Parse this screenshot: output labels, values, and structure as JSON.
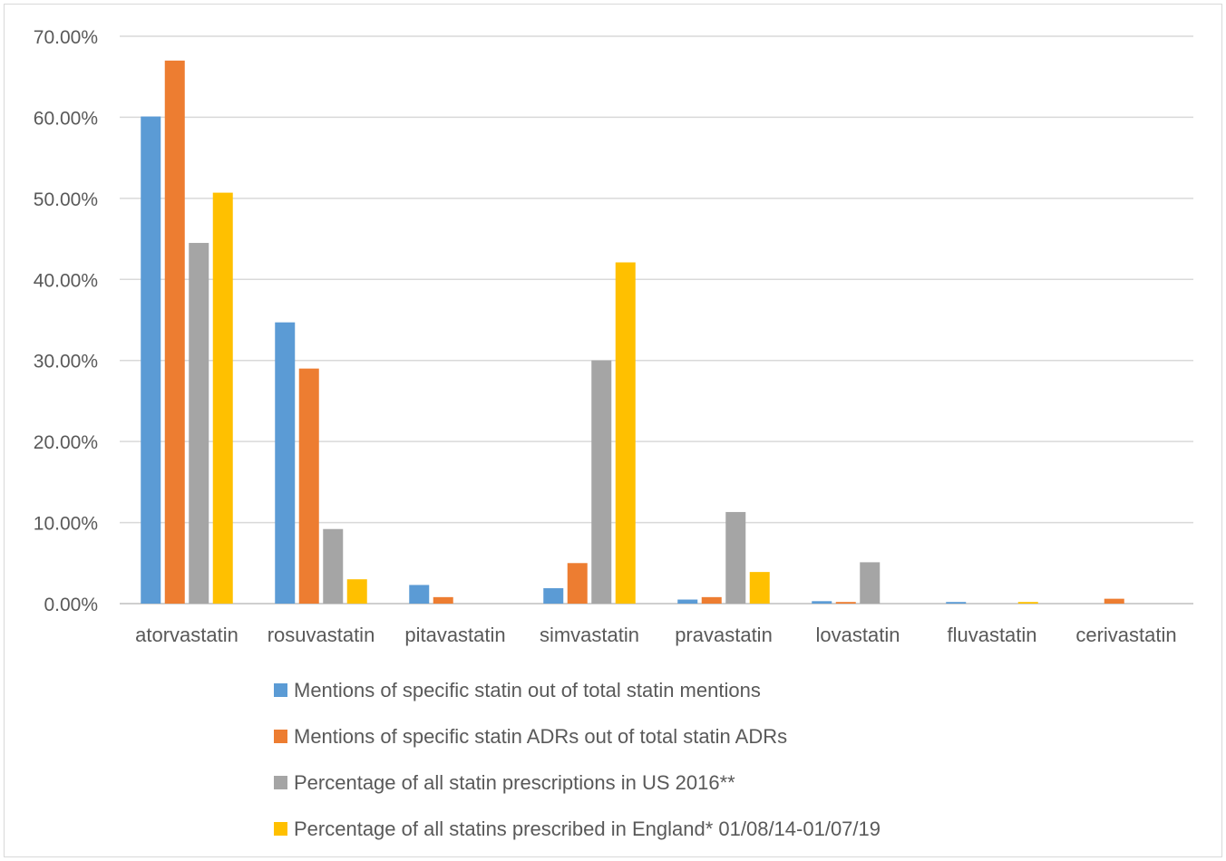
{
  "chart_data": {
    "type": "bar",
    "categories": [
      "atorvastatin",
      "rosuvastatin",
      "pitavastatin",
      "simvastatin",
      "pravastatin",
      "lovastatin",
      "fluvastatin",
      "cerivastatin"
    ],
    "series": [
      {
        "name": "Mentions of specific statin out of total statin mentions",
        "color": "#5b9bd5",
        "values": [
          60.1,
          34.7,
          2.3,
          1.9,
          0.5,
          0.3,
          0.2,
          0.0
        ]
      },
      {
        "name": "Mentions of specific statin ADRs out of total statin ADRs",
        "color": "#ed7d31",
        "values": [
          67.0,
          29.0,
          0.8,
          5.0,
          0.8,
          0.2,
          0.0,
          0.6
        ]
      },
      {
        "name": "Percentage of all statin prescriptions in US 2016**",
        "color": "#a5a5a5",
        "values": [
          44.5,
          9.2,
          0.0,
          30.0,
          11.3,
          5.1,
          0.0,
          0.0
        ]
      },
      {
        "name": "Percentage of all statins prescribed in England* 01/08/14-01/07/19",
        "color": "#ffc000",
        "values": [
          50.7,
          3.0,
          0.0,
          42.1,
          3.9,
          0.0,
          0.2,
          0.0
        ]
      }
    ],
    "yticks": [
      "0.00%",
      "10.00%",
      "20.00%",
      "30.00%",
      "40.00%",
      "50.00%",
      "60.00%",
      "70.00%"
    ],
    "ylim": [
      0,
      70
    ],
    "grid": true,
    "legend_position": "bottom"
  }
}
